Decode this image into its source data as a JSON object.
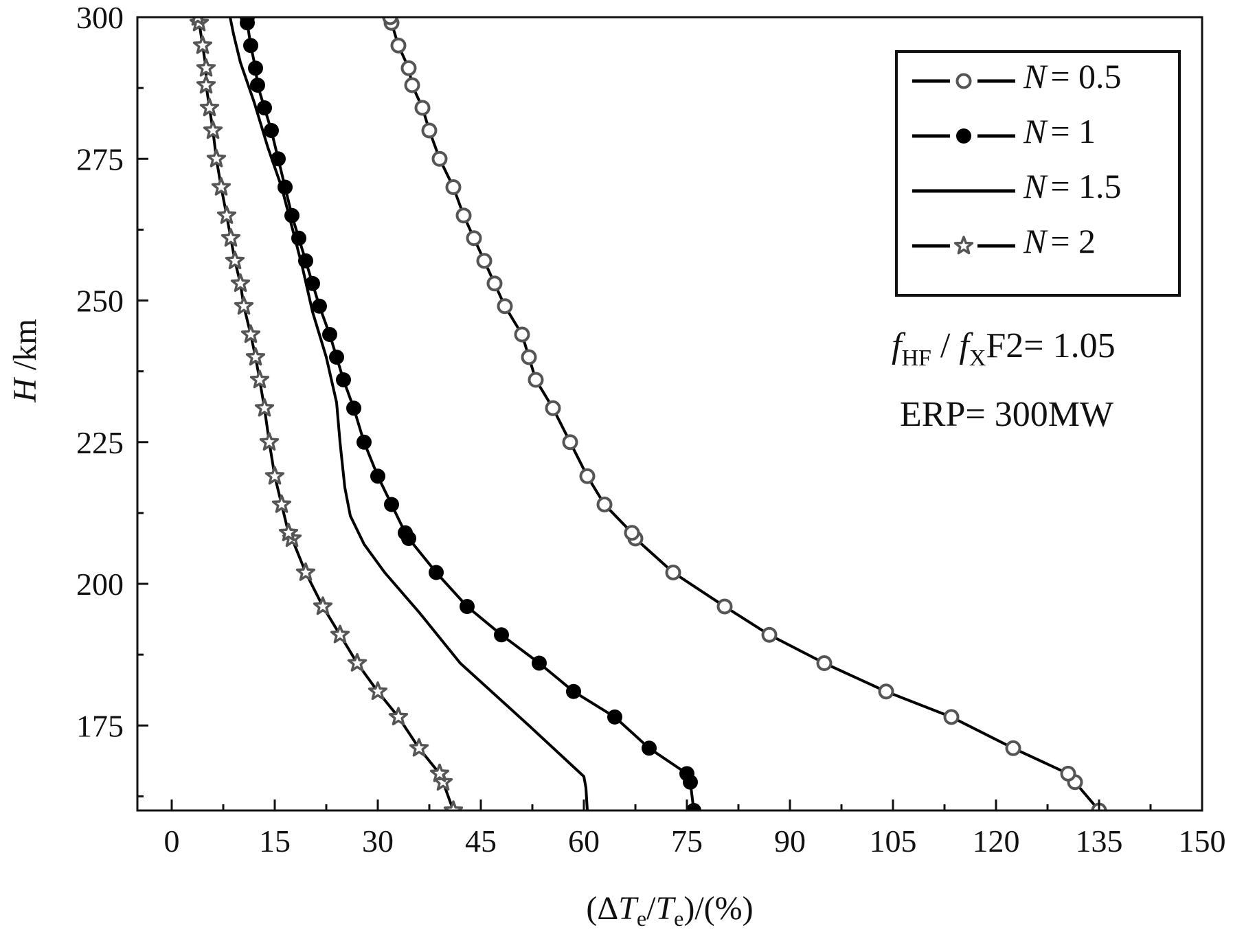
{
  "chart_data": {
    "type": "line",
    "title": "",
    "xlabel": "(ΔTe/Te)/(%)",
    "xlabel_parts": [
      "(Δ",
      "T",
      "e",
      "/",
      "T",
      "e",
      ")/(%)"
    ],
    "ylabel": "H /km",
    "ylabel_parts": [
      "H",
      " /km"
    ],
    "xlim": [
      -5,
      150
    ],
    "ylim": [
      160,
      300
    ],
    "xticks": [
      0,
      15,
      30,
      45,
      60,
      75,
      90,
      105,
      120,
      135,
      150
    ],
    "xtick_labels": [
      "0",
      "15",
      "30",
      "45",
      "60",
      "75",
      "90",
      "105",
      "120",
      "135",
      "150"
    ],
    "yticks": [
      175,
      200,
      225,
      250,
      275,
      300
    ],
    "ytick_labels": [
      "175",
      "200",
      "225",
      "250",
      "275",
      "300"
    ],
    "grid": false,
    "legend_position": "top-right",
    "series": [
      {
        "name": "N = 0.5",
        "legend_label": "= 0.5",
        "marker": "circle-open",
        "line": "solid",
        "points": [
          [
            135,
            160
          ],
          [
            131.5,
            165
          ],
          [
            130.5,
            166.5
          ],
          [
            122.5,
            171
          ],
          [
            113.5,
            176.5
          ],
          [
            104,
            181
          ],
          [
            95,
            186
          ],
          [
            87,
            191
          ],
          [
            80.5,
            196
          ],
          [
            73,
            202
          ],
          [
            67.5,
            208
          ],
          [
            67,
            209
          ],
          [
            63,
            214
          ],
          [
            60.5,
            219
          ],
          [
            58,
            225
          ],
          [
            55.5,
            231
          ],
          [
            53,
            236
          ],
          [
            52,
            240
          ],
          [
            51,
            244
          ],
          [
            48.5,
            249
          ],
          [
            47,
            253
          ],
          [
            45.5,
            257
          ],
          [
            44,
            261
          ],
          [
            42.5,
            265
          ],
          [
            41,
            270
          ],
          [
            39,
            275
          ],
          [
            37.5,
            280
          ],
          [
            36.5,
            284
          ],
          [
            35,
            288
          ],
          [
            34.5,
            291
          ],
          [
            33,
            295
          ],
          [
            32,
            299
          ],
          [
            31.8,
            300
          ]
        ]
      },
      {
        "name": "N = 1",
        "legend_label": "= 1",
        "marker": "circle-filled",
        "line": "solid",
        "points": [
          [
            76,
            160
          ],
          [
            75.5,
            165
          ],
          [
            75,
            166.5
          ],
          [
            69.5,
            171
          ],
          [
            64.5,
            176.5
          ],
          [
            58.5,
            181
          ],
          [
            53.5,
            186
          ],
          [
            48,
            191
          ],
          [
            43,
            196
          ],
          [
            38.5,
            202
          ],
          [
            34.5,
            208
          ],
          [
            34,
            209
          ],
          [
            32,
            214
          ],
          [
            30,
            219
          ],
          [
            28,
            225
          ],
          [
            26.5,
            231
          ],
          [
            25,
            236
          ],
          [
            24,
            240
          ],
          [
            23,
            244
          ],
          [
            21.5,
            249
          ],
          [
            20.5,
            253
          ],
          [
            19.5,
            257
          ],
          [
            18.5,
            261
          ],
          [
            17.5,
            265
          ],
          [
            16.5,
            270
          ],
          [
            15.5,
            275
          ],
          [
            14.5,
            280
          ],
          [
            13.5,
            284
          ],
          [
            12.5,
            288
          ],
          [
            12.2,
            291
          ],
          [
            11.5,
            295
          ],
          [
            11,
            299
          ],
          [
            11,
            300
          ]
        ]
      },
      {
        "name": "N = 1.5",
        "legend_label": "= 1.5",
        "marker": "none",
        "line": "solid",
        "points": [
          [
            60.5,
            160
          ],
          [
            60.3,
            164
          ],
          [
            60,
            166
          ],
          [
            52,
            175
          ],
          [
            42,
            186
          ],
          [
            36,
            195
          ],
          [
            31,
            202
          ],
          [
            28,
            207
          ],
          [
            26,
            212
          ],
          [
            25.2,
            217
          ],
          [
            24.5,
            225
          ],
          [
            24,
            232
          ],
          [
            22.5,
            240
          ],
          [
            20.5,
            248
          ],
          [
            19,
            256
          ],
          [
            17.5,
            263
          ],
          [
            16,
            270
          ],
          [
            14,
            277
          ],
          [
            12,
            285
          ],
          [
            10,
            292
          ],
          [
            9,
            297
          ],
          [
            8.5,
            300
          ]
        ]
      },
      {
        "name": "N = 2",
        "legend_label": "= 2",
        "marker": "star-open",
        "line": "solid",
        "points": [
          [
            41,
            160
          ],
          [
            39.5,
            165
          ],
          [
            39,
            166.5
          ],
          [
            36,
            171
          ],
          [
            33,
            176.5
          ],
          [
            30,
            181
          ],
          [
            27,
            186
          ],
          [
            24.5,
            191
          ],
          [
            22,
            196
          ],
          [
            19.5,
            202
          ],
          [
            17.5,
            208
          ],
          [
            17,
            209
          ],
          [
            16,
            214
          ],
          [
            15,
            219
          ],
          [
            14.2,
            225
          ],
          [
            13.5,
            231
          ],
          [
            12.8,
            236
          ],
          [
            12.2,
            240
          ],
          [
            11.5,
            244
          ],
          [
            10.5,
            249
          ],
          [
            10,
            253
          ],
          [
            9.2,
            257
          ],
          [
            8.6,
            261
          ],
          [
            8,
            265
          ],
          [
            7.2,
            270
          ],
          [
            6.5,
            275
          ],
          [
            6,
            280
          ],
          [
            5.5,
            284
          ],
          [
            5,
            288
          ],
          [
            5,
            291
          ],
          [
            4.5,
            295
          ],
          [
            4,
            299
          ],
          [
            3.8,
            300
          ]
        ]
      }
    ],
    "annotations": {
      "freq_f1": "f",
      "freq_sub1": "HF",
      "freq_slash": " / ",
      "freq_f2": "f",
      "freq_sub2": "X",
      "freq_rest": "F2= 1.05",
      "erp": "ERP= 300MW"
    }
  }
}
